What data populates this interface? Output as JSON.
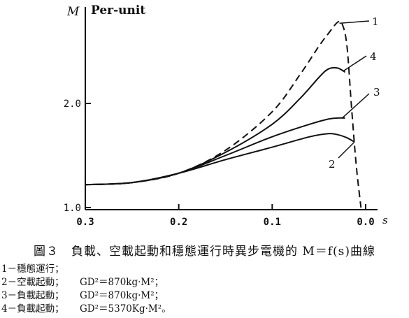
{
  "chart_data": {
    "type": "line",
    "title": "",
    "ylabel_symbol": "M",
    "ylabel_unit": "Per-unit",
    "xlabel": "s",
    "x_ticks": [
      "0.3",
      "0.2",
      "0.1",
      "0.0"
    ],
    "y_ticks": [
      "1.0",
      "2.0"
    ],
    "xlim": [
      0.3,
      -0.01
    ],
    "ylim": [
      0.95,
      2.95
    ],
    "series": [
      {
        "name": "1",
        "dashed": true,
        "points": [
          [
            0.3,
            1.22
          ],
          [
            0.25,
            1.24
          ],
          [
            0.2,
            1.33
          ],
          [
            0.15,
            1.55
          ],
          [
            0.1,
            1.92
          ],
          [
            0.07,
            2.28
          ],
          [
            0.05,
            2.55
          ],
          [
            0.04,
            2.67
          ],
          [
            0.03,
            2.78
          ],
          [
            0.025,
            2.76
          ],
          [
            0.02,
            2.55
          ],
          [
            0.015,
            1.95
          ],
          [
            0.01,
            1.4
          ],
          [
            0.005,
            1.0
          ]
        ]
      },
      {
        "name": "2",
        "dashed": false,
        "points": [
          [
            0.3,
            1.22
          ],
          [
            0.25,
            1.24
          ],
          [
            0.2,
            1.33
          ],
          [
            0.15,
            1.46
          ],
          [
            0.1,
            1.58
          ],
          [
            0.06,
            1.68
          ],
          [
            0.04,
            1.71
          ],
          [
            0.03,
            1.7
          ],
          [
            0.02,
            1.67
          ],
          [
            0.012,
            1.63
          ]
        ]
      },
      {
        "name": "3",
        "dashed": false,
        "points": [
          [
            0.3,
            1.22
          ],
          [
            0.25,
            1.24
          ],
          [
            0.2,
            1.33
          ],
          [
            0.15,
            1.5
          ],
          [
            0.1,
            1.68
          ],
          [
            0.06,
            1.8
          ],
          [
            0.04,
            1.85
          ],
          [
            0.03,
            1.86
          ],
          [
            0.022,
            1.86
          ]
        ]
      },
      {
        "name": "4",
        "dashed": false,
        "points": [
          [
            0.3,
            1.22
          ],
          [
            0.25,
            1.24
          ],
          [
            0.2,
            1.33
          ],
          [
            0.15,
            1.53
          ],
          [
            0.1,
            1.8
          ],
          [
            0.07,
            2.05
          ],
          [
            0.05,
            2.25
          ],
          [
            0.04,
            2.33
          ],
          [
            0.03,
            2.34
          ],
          [
            0.022,
            2.3
          ]
        ]
      }
    ],
    "curve_labels": [
      "1",
      "2",
      "3",
      "4"
    ]
  },
  "caption": "圖３　負載、空載起動和穩態運行時異步電機的 M＝f(s)曲線",
  "legend": [
    {
      "label": "1－穩態運行；",
      "gd": ""
    },
    {
      "label": "2－空載起動；",
      "gd": "GD²＝870kg·M²；"
    },
    {
      "label": "3－負載起動；",
      "gd": "GD²＝870kg·M²；"
    },
    {
      "label": "4－負載起動；",
      "gd": "GD²＝5370Kg·M²。"
    }
  ]
}
